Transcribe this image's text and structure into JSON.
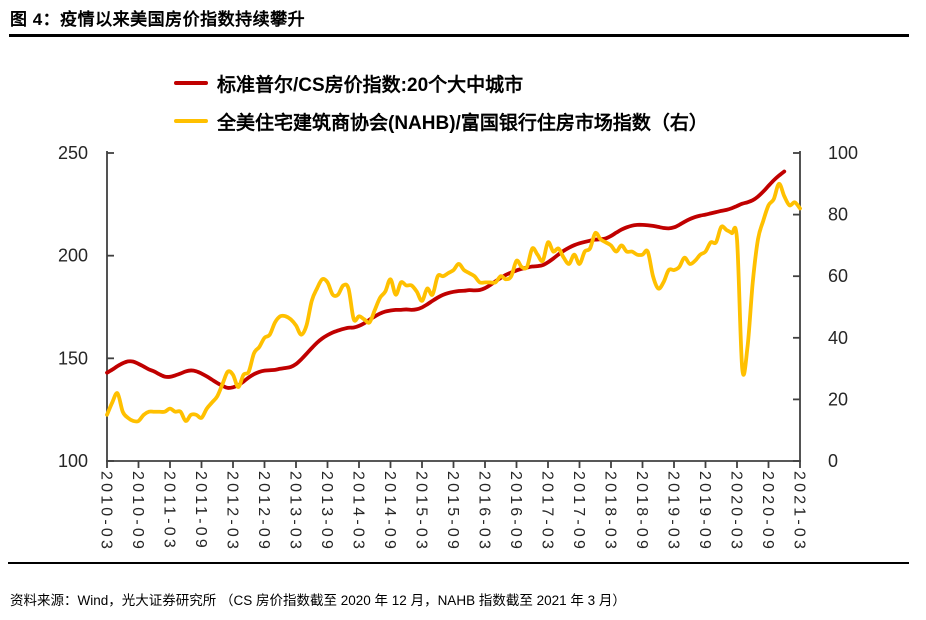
{
  "header": {
    "title": "图 4：疫情以来美国房价指数持续攀升"
  },
  "legend": {
    "items": [
      {
        "label": "标准普尔/CS房价指数:20个大中城市",
        "color": "#C00000"
      },
      {
        "label": "全美住宅建筑商协会(NAHB)/富国银行住房市场指数（右）",
        "color": "#FFC000"
      }
    ]
  },
  "chart_data": {
    "type": "line",
    "x_start_month": "2010-03",
    "x_interval": "monthly",
    "x_tick_labels": [
      "2010-03",
      "2010-09",
      "2011-03",
      "2011-09",
      "2012-03",
      "2012-09",
      "2013-03",
      "2013-09",
      "2014-03",
      "2014-09",
      "2015-03",
      "2015-09",
      "2016-03",
      "2016-09",
      "2017-03",
      "2017-09",
      "2018-03",
      "2018-09",
      "2019-03",
      "2019-09",
      "2020-03",
      "2020-09",
      "2021-03"
    ],
    "left_axis": {
      "min": 100,
      "max": 250,
      "ticks": [
        100,
        150,
        200,
        250
      ]
    },
    "right_axis": {
      "min": 0,
      "max": 100,
      "ticks": [
        0,
        20,
        40,
        60,
        80,
        100
      ]
    },
    "grid": false,
    "legend_position": "top",
    "series": [
      {
        "name": "标准普尔/CS房价指数:20个大中城市",
        "axis": "left",
        "color": "#C00000",
        "start_month": "2010-03",
        "end_month": "2020-12",
        "values": [
          143.0,
          144.5,
          146.2,
          147.6,
          148.5,
          148.4,
          147.3,
          146.0,
          144.6,
          143.6,
          142.2,
          141.1,
          141.0,
          141.7,
          142.6,
          143.6,
          144.1,
          143.7,
          142.6,
          141.2,
          139.6,
          138.0,
          136.6,
          135.6,
          135.9,
          136.9,
          138.7,
          140.7,
          142.3,
          143.4,
          144.0,
          144.2,
          144.4,
          144.9,
          145.3,
          145.8,
          147.2,
          149.5,
          152.2,
          155.0,
          157.6,
          159.7,
          161.3,
          162.6,
          163.5,
          164.3,
          164.9,
          165.0,
          165.8,
          167.1,
          168.8,
          170.4,
          171.8,
          172.8,
          173.3,
          173.6,
          173.6,
          173.8,
          173.6,
          173.9,
          174.8,
          176.3,
          178.0,
          179.6,
          180.9,
          181.8,
          182.4,
          182.8,
          182.9,
          183.2,
          183.1,
          183.3,
          184.2,
          185.7,
          187.5,
          189.2,
          190.7,
          191.8,
          192.8,
          193.6,
          194.2,
          194.7,
          194.9,
          195.4,
          196.8,
          198.6,
          200.6,
          202.4,
          203.9,
          205.1,
          206.0,
          206.7,
          207.3,
          207.8,
          208.0,
          208.4,
          209.6,
          211.2,
          212.7,
          213.8,
          214.6,
          215.0,
          215.0,
          214.8,
          214.5,
          214.0,
          213.5,
          213.3,
          213.8,
          215.0,
          216.5,
          217.8,
          218.8,
          219.5,
          220.0,
          220.6,
          221.2,
          221.8,
          222.3,
          223.1,
          224.2,
          225.3,
          226.0,
          227.0,
          228.8,
          231.2,
          234.0,
          236.7,
          239.0,
          241.0
        ]
      },
      {
        "name": "全美住宅建筑商协会(NAHB)/富国银行住房市场指数（右）",
        "axis": "right",
        "color": "#FFC000",
        "start_month": "2010-03",
        "end_month": "2021-03",
        "values": [
          15,
          19,
          22,
          16,
          14,
          13,
          13,
          15,
          16,
          16,
          16,
          16,
          17,
          16,
          16,
          13,
          15,
          15,
          14,
          17,
          19,
          21,
          25,
          29,
          28,
          24,
          28,
          29,
          35,
          37,
          40,
          41,
          45,
          47,
          47,
          46,
          44,
          41,
          44,
          52,
          56,
          59,
          58,
          54,
          54,
          57,
          56,
          46,
          47,
          46,
          45,
          49,
          53,
          55,
          59,
          54,
          58,
          57,
          57,
          55,
          52,
          56,
          54,
          60,
          60,
          61,
          62,
          64,
          62,
          61,
          60,
          58,
          58,
          58,
          58,
          60,
          59,
          60,
          65,
          63,
          63,
          69,
          67,
          65,
          71,
          68,
          69,
          66,
          64,
          67,
          64,
          68,
          69,
          74,
          72,
          71,
          70,
          68,
          70,
          68,
          68,
          67,
          67,
          68,
          60,
          56,
          58,
          62,
          62,
          63,
          66,
          64,
          65,
          67,
          68,
          71,
          71,
          76,
          75,
          74,
          72,
          30,
          37,
          58,
          72,
          78,
          83,
          85,
          90,
          86,
          83,
          84,
          82
        ]
      }
    ]
  },
  "footer": {
    "source": "资料来源：Wind，光大证券研究所 （CS 房价指数截至 2020 年 12 月，NAHB 指数截至 2021 年 3 月）"
  },
  "colors": {
    "red": "#C00000",
    "yellow": "#FFC000",
    "axis": "#404040",
    "tick_text": "#262626"
  }
}
